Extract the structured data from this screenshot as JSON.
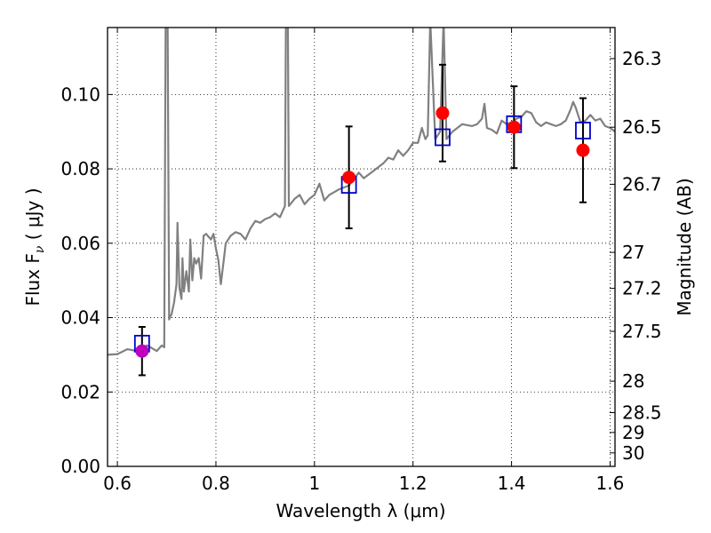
{
  "chart_data": {
    "type": "scatter",
    "xlabel": "Wavelength  λ (μm)",
    "ylabel": "Flux  F",
    "ylabel_sub": "ν",
    "ylabel_unit": "  ( μJy )",
    "y2label": "Magnitude (AB)",
    "xlim": [
      0.58,
      1.61
    ],
    "ylim": [
      0.0,
      0.118
    ],
    "grid": true,
    "x_ticks": [
      {
        "value": 0.6,
        "label": "0.6"
      },
      {
        "value": 0.8,
        "label": "0.8"
      },
      {
        "value": 1.0,
        "label": "1"
      },
      {
        "value": 1.2,
        "label": "1.2"
      },
      {
        "value": 1.4,
        "label": "1.4"
      },
      {
        "value": 1.6,
        "label": "1.6"
      }
    ],
    "y_ticks": [
      {
        "value": 0.0,
        "label": "0.00"
      },
      {
        "value": 0.02,
        "label": "0.02"
      },
      {
        "value": 0.04,
        "label": "0.04"
      },
      {
        "value": 0.06,
        "label": "0.06"
      },
      {
        "value": 0.08,
        "label": "0.08"
      },
      {
        "value": 0.1,
        "label": "0.10"
      }
    ],
    "y2_ticks": [
      {
        "mag": 26.3,
        "label": "26.3"
      },
      {
        "mag": 26.5,
        "label": "26.5"
      },
      {
        "mag": 26.7,
        "label": "26.7"
      },
      {
        "mag": 27.0,
        "label": "27"
      },
      {
        "mag": 27.2,
        "label": "27.2"
      },
      {
        "mag": 27.5,
        "label": "27.5"
      },
      {
        "mag": 28.0,
        "label": "28"
      },
      {
        "mag": 28.5,
        "label": "28.5"
      },
      {
        "mag": 29.0,
        "label": "29"
      },
      {
        "mag": 30.0,
        "label": "30"
      }
    ],
    "observed": [
      {
        "x": 0.65,
        "y": 0.031,
        "err": 0.0065,
        "color": "#bf00bf"
      },
      {
        "x": 1.07,
        "y": 0.0777,
        "err": 0.0137,
        "color": "#ff0000"
      },
      {
        "x": 1.26,
        "y": 0.095,
        "err": 0.013,
        "color": "#ff0000"
      },
      {
        "x": 1.405,
        "y": 0.0912,
        "err": 0.011,
        "color": "#ff0000"
      },
      {
        "x": 1.545,
        "y": 0.085,
        "err": 0.014,
        "color": "#ff0000"
      }
    ],
    "model_photometry": [
      {
        "x": 0.65,
        "y": 0.033
      },
      {
        "x": 1.07,
        "y": 0.0757
      },
      {
        "x": 1.26,
        "y": 0.0885
      },
      {
        "x": 1.405,
        "y": 0.092
      },
      {
        "x": 1.545,
        "y": 0.0903
      }
    ],
    "model_spectrum": [
      [
        0.58,
        0.03
      ],
      [
        0.6,
        0.0302
      ],
      [
        0.62,
        0.0315
      ],
      [
        0.64,
        0.031
      ],
      [
        0.65,
        0.0318
      ],
      [
        0.66,
        0.0325
      ],
      [
        0.67,
        0.0318
      ],
      [
        0.68,
        0.031
      ],
      [
        0.69,
        0.0325
      ],
      [
        0.695,
        0.032
      ],
      [
        0.698,
        0.12
      ],
      [
        0.702,
        0.12
      ],
      [
        0.705,
        0.0395
      ],
      [
        0.71,
        0.041
      ],
      [
        0.715,
        0.044
      ],
      [
        0.72,
        0.049
      ],
      [
        0.722,
        0.0655
      ],
      [
        0.726,
        0.048
      ],
      [
        0.73,
        0.045
      ],
      [
        0.732,
        0.056
      ],
      [
        0.735,
        0.047
      ],
      [
        0.74,
        0.0525
      ],
      [
        0.745,
        0.047
      ],
      [
        0.748,
        0.061
      ],
      [
        0.752,
        0.05
      ],
      [
        0.756,
        0.056
      ],
      [
        0.76,
        0.0545
      ],
      [
        0.765,
        0.056
      ],
      [
        0.77,
        0.0505
      ],
      [
        0.775,
        0.062
      ],
      [
        0.78,
        0.0625
      ],
      [
        0.79,
        0.061
      ],
      [
        0.795,
        0.0625
      ],
      [
        0.8,
        0.0585
      ],
      [
        0.805,
        0.0555
      ],
      [
        0.81,
        0.049
      ],
      [
        0.815,
        0.0545
      ],
      [
        0.82,
        0.06
      ],
      [
        0.83,
        0.062
      ],
      [
        0.84,
        0.063
      ],
      [
        0.85,
        0.0625
      ],
      [
        0.86,
        0.061
      ],
      [
        0.87,
        0.064
      ],
      [
        0.88,
        0.066
      ],
      [
        0.89,
        0.0655
      ],
      [
        0.9,
        0.0665
      ],
      [
        0.91,
        0.067
      ],
      [
        0.92,
        0.068
      ],
      [
        0.93,
        0.067
      ],
      [
        0.94,
        0.07
      ],
      [
        0.942,
        0.12
      ],
      [
        0.946,
        0.12
      ],
      [
        0.948,
        0.07
      ],
      [
        0.96,
        0.072
      ],
      [
        0.97,
        0.073
      ],
      [
        0.98,
        0.0705
      ],
      [
        0.99,
        0.072
      ],
      [
        1.0,
        0.073
      ],
      [
        1.01,
        0.076
      ],
      [
        1.02,
        0.0715
      ],
      [
        1.03,
        0.073
      ],
      [
        1.05,
        0.0745
      ],
      [
        1.07,
        0.0755
      ],
      [
        1.09,
        0.079
      ],
      [
        1.1,
        0.0775
      ],
      [
        1.12,
        0.0795
      ],
      [
        1.14,
        0.0815
      ],
      [
        1.15,
        0.083
      ],
      [
        1.16,
        0.0825
      ],
      [
        1.17,
        0.085
      ],
      [
        1.18,
        0.0835
      ],
      [
        1.19,
        0.085
      ],
      [
        1.2,
        0.087
      ],
      [
        1.21,
        0.087
      ],
      [
        1.218,
        0.091
      ],
      [
        1.225,
        0.088
      ],
      [
        1.23,
        0.089
      ],
      [
        1.235,
        0.12
      ],
      [
        1.245,
        0.088
      ],
      [
        1.255,
        0.09
      ],
      [
        1.262,
        0.12
      ],
      [
        1.268,
        0.088
      ],
      [
        1.28,
        0.09
      ],
      [
        1.3,
        0.092
      ],
      [
        1.32,
        0.0915
      ],
      [
        1.33,
        0.092
      ],
      [
        1.34,
        0.0935
      ],
      [
        1.345,
        0.0975
      ],
      [
        1.35,
        0.091
      ],
      [
        1.36,
        0.0905
      ],
      [
        1.37,
        0.0895
      ],
      [
        1.38,
        0.093
      ],
      [
        1.39,
        0.092
      ],
      [
        1.4,
        0.0925
      ],
      [
        1.41,
        0.0935
      ],
      [
        1.42,
        0.094
      ],
      [
        1.43,
        0.0955
      ],
      [
        1.44,
        0.095
      ],
      [
        1.45,
        0.0925
      ],
      [
        1.46,
        0.0915
      ],
      [
        1.47,
        0.0925
      ],
      [
        1.48,
        0.092
      ],
      [
        1.49,
        0.0915
      ],
      [
        1.5,
        0.092
      ],
      [
        1.51,
        0.093
      ],
      [
        1.52,
        0.096
      ],
      [
        1.525,
        0.098
      ],
      [
        1.53,
        0.0965
      ],
      [
        1.54,
        0.0925
      ],
      [
        1.55,
        0.093
      ],
      [
        1.56,
        0.0945
      ],
      [
        1.57,
        0.093
      ],
      [
        1.58,
        0.0935
      ],
      [
        1.59,
        0.0915
      ],
      [
        1.6,
        0.091
      ],
      [
        1.61,
        0.09
      ]
    ],
    "colors": {
      "spectrum": "#808080",
      "model_marker": "#0000cc",
      "errorbar": "#000000",
      "grid": "#000000"
    }
  }
}
